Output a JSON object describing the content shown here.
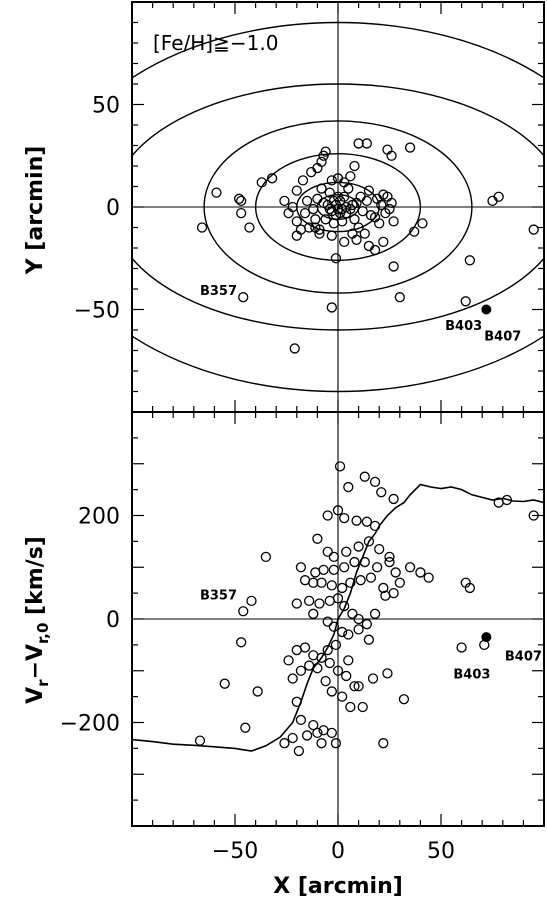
{
  "chart_data": [
    {
      "type": "scatter",
      "title": "",
      "annotation": "[Fe/H]≧−1.0",
      "xlabel": "",
      "ylabel": "Y [arcmin]",
      "xlim": [
        -100,
        100
      ],
      "ylim": [
        -100,
        100
      ],
      "yticks": [
        -50,
        0,
        50
      ],
      "reference_lines": {
        "x": 0,
        "y": 0
      },
      "ellipses": [
        {
          "a": 10,
          "b": 6
        },
        {
          "a": 20,
          "b": 12
        },
        {
          "a": 40,
          "b": 26
        },
        {
          "a": 65,
          "b": 42
        },
        {
          "a": 110,
          "b": 60
        },
        {
          "a": 140,
          "b": 90
        }
      ],
      "series": [
        {
          "marker": "open-circle",
          "points": [
            [
              -46,
              -44
            ],
            [
              -3,
              -49
            ],
            [
              30,
              -44
            ],
            [
              62,
              -46
            ],
            [
              -21,
              -69
            ],
            [
              64,
              -26
            ],
            [
              27,
              -29
            ],
            [
              -1,
              -25
            ],
            [
              -66,
              -10
            ],
            [
              -59,
              7
            ],
            [
              -48,
              4
            ],
            [
              -47,
              -3
            ],
            [
              -43,
              -10
            ],
            [
              -37,
              12
            ],
            [
              -32,
              14
            ],
            [
              -47,
              3
            ],
            [
              -24,
              -3
            ],
            [
              -26,
              3
            ],
            [
              -22,
              0
            ],
            [
              -20,
              -7
            ],
            [
              -18,
              -11
            ],
            [
              -16,
              -3
            ],
            [
              -15,
              3
            ],
            [
              -14,
              -10
            ],
            [
              -12,
              -1
            ],
            [
              -11,
              -6
            ],
            [
              -10,
              4
            ],
            [
              -9,
              -11
            ],
            [
              -8,
              9
            ],
            [
              -7,
              2
            ],
            [
              -6,
              -6
            ],
            [
              -5,
              1
            ],
            [
              -4,
              7
            ],
            [
              -3,
              -2
            ],
            [
              -2,
              3
            ],
            [
              -1,
              -4
            ],
            [
              0,
              -1
            ],
            [
              1,
              3
            ],
            [
              2,
              -7
            ],
            [
              3,
              5
            ],
            [
              4,
              -3
            ],
            [
              5,
              9
            ],
            [
              6,
              -1
            ],
            [
              7,
              1
            ],
            [
              8,
              -6
            ],
            [
              9,
              2
            ],
            [
              10,
              -10
            ],
            [
              11,
              5
            ],
            [
              12,
              -2
            ],
            [
              13,
              -13
            ],
            [
              14,
              3
            ],
            [
              15,
              8
            ],
            [
              16,
              -4
            ],
            [
              18,
              -5
            ],
            [
              19,
              4
            ],
            [
              20,
              -8
            ],
            [
              21,
              1
            ],
            [
              22,
              6
            ],
            [
              23,
              -3
            ],
            [
              24,
              5
            ],
            [
              25,
              -1
            ],
            [
              26,
              2
            ],
            [
              27,
              -7
            ],
            [
              -20,
              8
            ],
            [
              -17,
              13
            ],
            [
              -13,
              17
            ],
            [
              -10,
              19
            ],
            [
              -8,
              22
            ],
            [
              -7,
              25
            ],
            [
              -6,
              27
            ],
            [
              -3,
              13
            ],
            [
              0,
              14
            ],
            [
              3,
              12
            ],
            [
              6,
              15
            ],
            [
              8,
              20
            ],
            [
              10,
              31
            ],
            [
              14,
              31
            ],
            [
              24,
              28
            ],
            [
              26,
              25
            ],
            [
              35,
              29
            ],
            [
              -3,
              -14
            ],
            [
              3,
              -17
            ],
            [
              7,
              -13
            ],
            [
              -9,
              -13
            ],
            [
              -11,
              -10
            ],
            [
              -20,
              -14
            ],
            [
              22,
              -17
            ],
            [
              18,
              -21
            ],
            [
              15,
              -19
            ],
            [
              9,
              -16
            ],
            [
              41,
              -8
            ],
            [
              37,
              -12
            ],
            [
              75,
              3
            ],
            [
              78,
              5
            ],
            [
              95,
              -11
            ],
            [
              2,
              -1
            ],
            [
              -1,
              1
            ],
            [
              1,
              -3
            ],
            [
              4,
              0
            ],
            [
              -4,
              -1
            ],
            [
              0,
              5
            ],
            [
              -2,
              -8
            ]
          ]
        },
        {
          "marker": "filled-circle",
          "points": [
            [
              72,
              -50
            ]
          ]
        }
      ],
      "labels": [
        {
          "text": "B357",
          "x": -67,
          "y": -43
        },
        {
          "text": "B403",
          "x": 52,
          "y": -60
        },
        {
          "text": "B407",
          "x": 71,
          "y": -65
        }
      ]
    },
    {
      "type": "scatter",
      "title": "",
      "xlabel": "X [arcmin]",
      "ylabel": "Vᵣ−Vᵣ,₀ [km/s]",
      "ylabel_main": "V",
      "ylabel_sub1": "r",
      "ylabel_mid": "−V",
      "ylabel_sub2": "r,0",
      "ylabel_tail": " [km/s]",
      "xlim": [
        -100,
        100
      ],
      "ylim": [
        -400,
        400
      ],
      "xticks": [
        -50,
        0,
        50
      ],
      "yticks": [
        -200,
        0,
        200
      ],
      "reference_lines": {
        "x": 0,
        "y": 0
      },
      "curve": [
        [
          -100,
          -233
        ],
        [
          -90,
          -237
        ],
        [
          -80,
          -242
        ],
        [
          -70,
          -244
        ],
        [
          -60,
          -247
        ],
        [
          -50,
          -250
        ],
        [
          -42,
          -255
        ],
        [
          -35,
          -245
        ],
        [
          -28,
          -228
        ],
        [
          -22,
          -200
        ],
        [
          -18,
          -160
        ],
        [
          -15,
          -125
        ],
        [
          -12,
          -95
        ],
        [
          -8,
          -75
        ],
        [
          -5,
          -55
        ],
        [
          -2,
          -30
        ],
        [
          0,
          0
        ],
        [
          3,
          20
        ],
        [
          6,
          50
        ],
        [
          9,
          90
        ],
        [
          12,
          120
        ],
        [
          15,
          150
        ],
        [
          18,
          165
        ],
        [
          20,
          180
        ],
        [
          24,
          200
        ],
        [
          28,
          215
        ],
        [
          32,
          225
        ],
        [
          35,
          240
        ],
        [
          40,
          260
        ],
        [
          45,
          255
        ],
        [
          50,
          252
        ],
        [
          55,
          255
        ],
        [
          60,
          250
        ],
        [
          65,
          240
        ],
        [
          70,
          235
        ],
        [
          75,
          230
        ],
        [
          80,
          233
        ],
        [
          85,
          228
        ],
        [
          90,
          227
        ],
        [
          95,
          230
        ],
        [
          100,
          225
        ]
      ],
      "series": [
        {
          "marker": "open-circle",
          "points": [
            [
              1,
              295
            ],
            [
              5,
              255
            ],
            [
              13,
              275
            ],
            [
              18,
              265
            ],
            [
              21,
              245
            ],
            [
              27,
              232
            ],
            [
              -5,
              200
            ],
            [
              0,
              210
            ],
            [
              3,
              195
            ],
            [
              9,
              190
            ],
            [
              14,
              188
            ],
            [
              18,
              180
            ],
            [
              -10,
              155
            ],
            [
              -5,
              130
            ],
            [
              -2,
              120
            ],
            [
              4,
              130
            ],
            [
              10,
              140
            ],
            [
              15,
              150
            ],
            [
              20,
              135
            ],
            [
              25,
              120
            ],
            [
              -35,
              120
            ],
            [
              -18,
              100
            ],
            [
              -11,
              90
            ],
            [
              -7,
              95
            ],
            [
              -2,
              95
            ],
            [
              3,
              100
            ],
            [
              8,
              110
            ],
            [
              13,
              110
            ],
            [
              19,
              100
            ],
            [
              25,
              110
            ],
            [
              28,
              90
            ],
            [
              35,
              100
            ],
            [
              -16,
              75
            ],
            [
              -12,
              70
            ],
            [
              -8,
              70
            ],
            [
              -3,
              65
            ],
            [
              2,
              60
            ],
            [
              6,
              70
            ],
            [
              11,
              75
            ],
            [
              16,
              80
            ],
            [
              22,
              60
            ],
            [
              30,
              70
            ],
            [
              40,
              90
            ],
            [
              44,
              80
            ],
            [
              -20,
              30
            ],
            [
              -14,
              35
            ],
            [
              -9,
              30
            ],
            [
              -4,
              35
            ],
            [
              0,
              40
            ],
            [
              3,
              25
            ],
            [
              7,
              10
            ],
            [
              10,
              0
            ],
            [
              14,
              -10
            ],
            [
              18,
              10
            ],
            [
              23,
              45
            ],
            [
              27,
              50
            ],
            [
              -42,
              35
            ],
            [
              -46,
              15
            ],
            [
              -12,
              10
            ],
            [
              -5,
              -5
            ],
            [
              -2,
              -15
            ],
            [
              2,
              -25
            ],
            [
              5,
              -30
            ],
            [
              10,
              -20
            ],
            [
              15,
              -40
            ],
            [
              -24,
              -80
            ],
            [
              -20,
              -60
            ],
            [
              -16,
              -55
            ],
            [
              -12,
              -70
            ],
            [
              -8,
              -75
            ],
            [
              -4,
              -85
            ],
            [
              0,
              -100
            ],
            [
              4,
              -110
            ],
            [
              8,
              -130
            ],
            [
              -22,
              -115
            ],
            [
              -18,
              -100
            ],
            [
              -14,
              -90
            ],
            [
              -10,
              -95
            ],
            [
              -6,
              -120
            ],
            [
              -3,
              -140
            ],
            [
              2,
              -150
            ],
            [
              6,
              -170
            ],
            [
              -20,
              -160
            ],
            [
              -18,
              -195
            ],
            [
              -12,
              -205
            ],
            [
              -7,
              -215
            ],
            [
              -3,
              -220
            ],
            [
              -1,
              -240
            ],
            [
              -15,
              -225
            ],
            [
              -10,
              -220
            ],
            [
              -22,
              -230
            ],
            [
              -19,
              -255
            ],
            [
              -45,
              -210
            ],
            [
              -55,
              -125
            ],
            [
              -47,
              -45
            ],
            [
              -67,
              -235
            ],
            [
              -39,
              -140
            ],
            [
              -8,
              -240
            ],
            [
              22,
              -240
            ],
            [
              10,
              -130
            ],
            [
              17,
              -115
            ],
            [
              24,
              -105
            ],
            [
              32,
              -155
            ],
            [
              62,
              70
            ],
            [
              64,
              60
            ],
            [
              71,
              -50
            ],
            [
              78,
              225
            ],
            [
              82,
              230
            ],
            [
              95,
              200
            ],
            [
              60,
              -55
            ],
            [
              -26,
              -240
            ],
            [
              -5,
              -60
            ],
            [
              -1,
              -50
            ],
            [
              5,
              -80
            ],
            [
              12,
              -170
            ]
          ]
        },
        {
          "marker": "filled-circle",
          "points": [
            [
              72,
              -35
            ]
          ]
        }
      ],
      "labels": [
        {
          "text": "B357",
          "x": -67,
          "y": 38
        },
        {
          "text": "B407",
          "x": 81,
          "y": -80
        },
        {
          "text": "B403",
          "x": 56,
          "y": -115
        }
      ]
    }
  ]
}
